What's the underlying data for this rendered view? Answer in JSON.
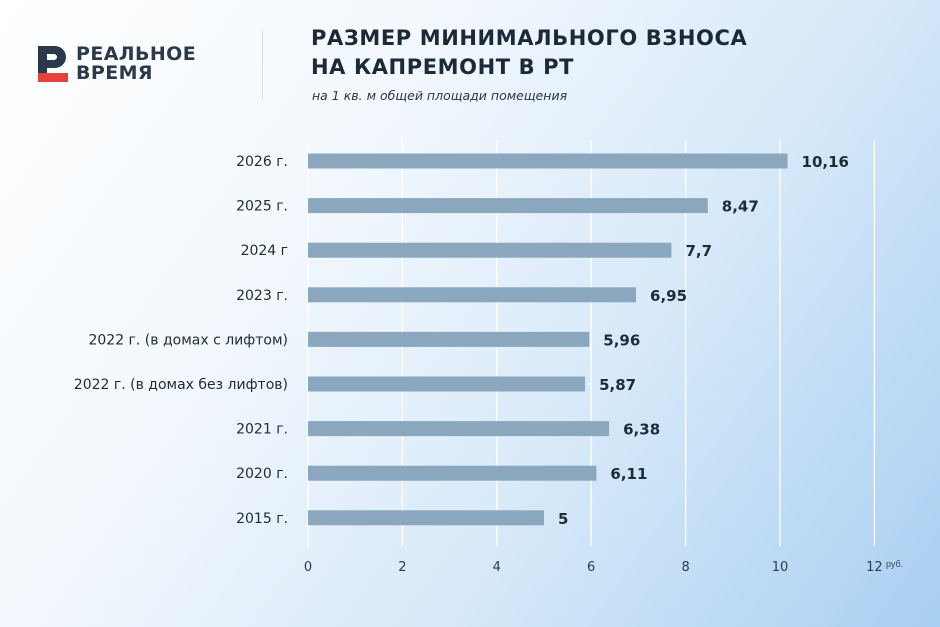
{
  "brand": {
    "line1": "РЕАЛЬНОЕ",
    "line2": "ВРЕМЯ",
    "mark_color": "#e8413c"
  },
  "header": {
    "title_line1": "РАЗМЕР МИНИМАЛЬНОГО ВЗНОСА",
    "title_line2": "НА КАПРЕМОНТ В РТ",
    "subtitle": "на 1 кв. м общей площади помещения"
  },
  "chart_data": {
    "type": "bar",
    "orientation": "horizontal",
    "categories": [
      "2026 г.",
      "2025 г.",
      "2024 г",
      "2023 г.",
      "2022 г. (в домах с лифтом)",
      "2022 г. (в домах без лифтов)",
      "2021 г.",
      "2020 г.",
      "2015 г."
    ],
    "values": [
      10.16,
      8.47,
      7.7,
      6.95,
      5.96,
      5.87,
      6.38,
      6.11,
      5
    ],
    "value_labels": [
      "10,16",
      "8,47",
      "7,7",
      "6,95",
      "5,96",
      "5,87",
      "6,38",
      "6,11",
      "5"
    ],
    "xlim": [
      0,
      12
    ],
    "xticks": [
      0,
      2,
      4,
      6,
      8,
      10,
      12
    ],
    "unit_label": "руб.",
    "grid": "vertical",
    "bar_color": "#8ba7be",
    "grid_color": "#ffffff"
  }
}
